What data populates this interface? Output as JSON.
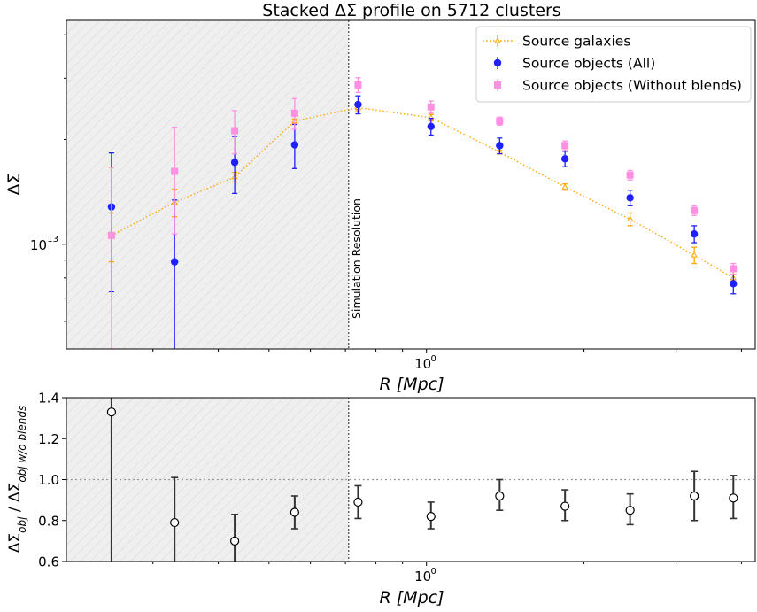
{
  "chart_data": [
    {
      "type": "scatter",
      "title": "Stacked ΔΣ profile on 5712 clusters",
      "xlabel": "R [Mpc]",
      "ylabel": "ΔΣ",
      "xscale": "log",
      "yscale": "log",
      "xlim": [
        0.205,
        4.25
      ],
      "ylim": [
        5000000000000.0,
        44000000000000.0
      ],
      "x_tick_label": {
        "base": "10",
        "exp": "0"
      },
      "y_tick_label": {
        "base": "10",
        "exp": "13"
      },
      "shaded_region": {
        "x_max": 0.71,
        "label": "Simulation Resolution"
      },
      "legend": "top-right",
      "series": [
        {
          "name": "Source galaxies",
          "color": "#ffa500",
          "marker": "triangle-open",
          "line": "dotted",
          "x": [
            0.25,
            0.33,
            0.43,
            0.56,
            0.74,
            1.02,
            1.38,
            1.84,
            2.45,
            3.25,
            3.86
          ],
          "y": [
            10600000000000.0,
            13200000000000.0,
            15600000000000.0,
            22600000000000.0,
            24700000000000.0,
            23100000000000.0,
            18400000000000.0,
            14600000000000.0,
            11800000000000.0,
            9300000000000.0,
            8000000000000.0
          ],
          "yerr": [
            1700000000000.0,
            1200000000000.0,
            500000000000.0,
            300000000000.0,
            500000000000.0,
            500000000000.0,
            200000000000.0,
            300000000000.0,
            500000000000.0,
            500000000000.0,
            400000000000.0
          ]
        },
        {
          "name": "Source objects (All)",
          "color": "#1f1fff",
          "marker": "circle",
          "x": [
            0.25,
            0.33,
            0.43,
            0.56,
            0.74,
            1.02,
            1.38,
            1.84,
            2.45,
            3.25,
            3.86
          ],
          "y": [
            12800000000000.0,
            8900000000000.0,
            17200000000000.0,
            19300000000000.0,
            25200000000000.0,
            21800000000000.0,
            19200000000000.0,
            17600000000000.0,
            13600000000000.0,
            10700000000000.0,
            7700000000000.0
          ],
          "yerr": [
            5500000000000.0,
            4500000000000.0,
            3200000000000.0,
            2800000000000.0,
            1500000000000.0,
            1200000000000.0,
            1000000000000.0,
            900000000000.0,
            700000000000.0,
            600000000000.0,
            500000000000.0
          ]
        },
        {
          "name": "Source objects (Without blends)",
          "color": "#ff8fe0",
          "marker": "square",
          "x": [
            0.25,
            0.33,
            0.43,
            0.56,
            0.74,
            1.02,
            1.38,
            1.84,
            2.45,
            3.25,
            3.86
          ],
          "y": [
            10600000000000.0,
            16200000000000.0,
            21200000000000.0,
            23800000000000.0,
            28700000000000.0,
            24800000000000.0,
            22600000000000.0,
            19200000000000.0,
            15800000000000.0,
            12500000000000.0,
            8500000000000.0
          ],
          "yerr": [
            6000000000000.0,
            5500000000000.0,
            3000000000000.0,
            2400000000000.0,
            1400000000000.0,
            1000000000000.0,
            600000000000.0,
            600000000000.0,
            500000000000.0,
            400000000000.0,
            300000000000.0
          ]
        }
      ]
    },
    {
      "type": "scatter",
      "title": "",
      "xlabel": "R [Mpc]",
      "ylabel": "ΔΣ_obj / ΔΣ_obj w/o blends",
      "xscale": "log",
      "xlim": [
        0.205,
        4.25
      ],
      "ylim": [
        0.6,
        1.4
      ],
      "yticks": [
        0.6,
        0.8,
        1.0,
        1.2,
        1.4
      ],
      "ytick_labels": [
        "0.6",
        "0.8",
        "1.0",
        "1.2",
        "1.4"
      ],
      "x_tick_label": {
        "base": "10",
        "exp": "0"
      },
      "reference_line": 1.0,
      "shaded_region": {
        "x_max": 0.71
      },
      "series": [
        {
          "name": "",
          "color": "#000000",
          "marker": "circle-open",
          "x": [
            0.25,
            0.33,
            0.43,
            0.56,
            0.74,
            1.02,
            1.38,
            1.84,
            2.45,
            3.25,
            3.86
          ],
          "y": [
            1.33,
            0.79,
            0.7,
            0.84,
            0.89,
            0.82,
            0.92,
            0.87,
            0.85,
            0.92,
            0.91
          ],
          "ylo": [
            0.5,
            0.5,
            0.57,
            0.76,
            0.81,
            0.76,
            0.85,
            0.8,
            0.78,
            0.8,
            0.81
          ],
          "yhi": [
            1.5,
            1.01,
            0.83,
            0.92,
            0.97,
            0.89,
            1.0,
            0.95,
            0.93,
            1.04,
            1.02
          ]
        }
      ]
    }
  ]
}
